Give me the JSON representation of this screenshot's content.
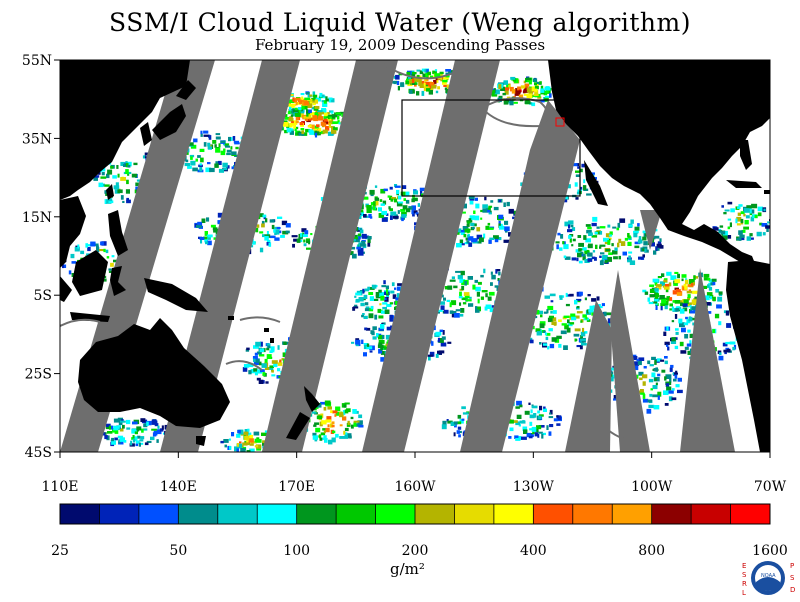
{
  "header": {
    "title": "SSM/I Cloud Liquid Water (Weng algorithm)",
    "subtitle": "February 19, 2009  Descending Passes"
  },
  "map": {
    "lat_labels": [
      "55N",
      "35N",
      "15N",
      "5S",
      "25S",
      "45S"
    ],
    "lon_labels": [
      "110E",
      "140E",
      "170E",
      "160W",
      "130W",
      "100W",
      "70W"
    ],
    "colors": {
      "ocean_background": "#ffffff",
      "land": "#000000",
      "swath_gap": "#6e6e6e",
      "box_outline": "#000000",
      "marker": "#ff0000"
    }
  },
  "colorbar": {
    "colors": [
      "#000a6e",
      "#0023b8",
      "#0050ff",
      "#008c8c",
      "#00c8c8",
      "#00ffff",
      "#00961e",
      "#00c800",
      "#00ff00",
      "#b4b400",
      "#e6dc00",
      "#ffff00",
      "#ff5000",
      "#ff7800",
      "#ffa000",
      "#8c0000",
      "#c80000",
      "#ff0000"
    ],
    "tick_labels": [
      "25",
      "50",
      "100",
      "200",
      "400",
      "800",
      "1600"
    ],
    "unit": "g/m²"
  },
  "logo": {
    "org_left": "ESRL",
    "org_right": "PSD",
    "emblem": "NOAA"
  }
}
